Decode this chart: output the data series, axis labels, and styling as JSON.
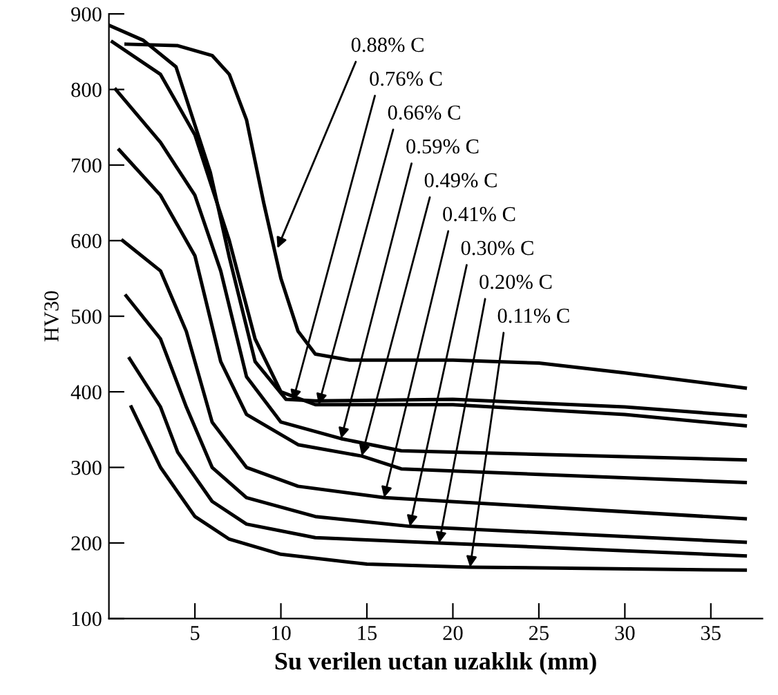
{
  "chart_data": {
    "type": "line",
    "xlabel": "Su verilen uctan uzaklık (mm)",
    "ylabel": "HV30",
    "xlim": [
      0,
      38
    ],
    "ylim": [
      100,
      900
    ],
    "xticks": [
      5,
      10,
      15,
      20,
      25,
      30,
      35
    ],
    "yticks": [
      100,
      200,
      300,
      400,
      500,
      600,
      700,
      800,
      900
    ],
    "grid": false,
    "legend": false,
    "marker": "none",
    "line_style": "solid",
    "series": [
      {
        "color": "#000000",
        "x": [
          1,
          4,
          6,
          7,
          8,
          9,
          10,
          11,
          12,
          14,
          20,
          25,
          30,
          37
        ],
        "values": [
          860,
          858,
          845,
          820,
          760,
          650,
          550,
          480,
          450,
          442,
          442,
          438,
          425,
          405
        ]
      },
      {
        "color": "#000000",
        "x": [
          0,
          2,
          3.9,
          5.9,
          7,
          8.5,
          10.3,
          12,
          20,
          30,
          37
        ],
        "values": [
          885,
          865,
          830,
          690,
          578,
          440,
          390,
          388,
          390,
          380,
          368
        ]
      },
      {
        "color": "#000000",
        "x": [
          0.2,
          3,
          5,
          7,
          8.5,
          10,
          12,
          20,
          30,
          37
        ],
        "values": [
          863,
          820,
          740,
          600,
          470,
          400,
          383,
          383,
          370,
          355
        ]
      },
      {
        "color": "#000000",
        "x": [
          0.4,
          3,
          5,
          6.5,
          8,
          10,
          13.5,
          17,
          37
        ],
        "values": [
          800,
          730,
          660,
          560,
          420,
          360,
          338,
          322,
          310
        ]
      },
      {
        "color": "#000000",
        "x": [
          0.6,
          3,
          5,
          6.5,
          8,
          11,
          14.7,
          17,
          37
        ],
        "values": [
          720,
          660,
          580,
          440,
          370,
          330,
          315,
          298,
          280
        ]
      },
      {
        "color": "#000000",
        "x": [
          0.8,
          3,
          4.5,
          6,
          8,
          11,
          16,
          37
        ],
        "values": [
          600,
          560,
          480,
          360,
          300,
          275,
          260,
          232
        ]
      },
      {
        "color": "#000000",
        "x": [
          1,
          3,
          4.5,
          6,
          8,
          12,
          17.5,
          37
        ],
        "values": [
          527,
          470,
          380,
          300,
          260,
          235,
          222,
          201
        ]
      },
      {
        "color": "#000000",
        "x": [
          1.2,
          3,
          4,
          6,
          8,
          12,
          19.2,
          37
        ],
        "values": [
          444,
          380,
          320,
          255,
          225,
          207,
          200,
          183
        ]
      },
      {
        "color": "#000000",
        "x": [
          1.3,
          3,
          5,
          7,
          10,
          15,
          21,
          37
        ],
        "values": [
          380,
          300,
          235,
          205,
          185,
          172,
          168,
          164
        ]
      }
    ],
    "annotations": [
      {
        "text": "0.88% C",
        "x": 9.8,
        "y": 590
      },
      {
        "text": "0.76% C",
        "x": 10.7,
        "y": 388
      },
      {
        "text": "0.66% C",
        "x": 12.2,
        "y": 383
      },
      {
        "text": "0.59% C",
        "x": 13.5,
        "y": 338
      },
      {
        "text": "0.49% C",
        "x": 14.7,
        "y": 315
      },
      {
        "text": "0.41% C",
        "x": 16,
        "y": 260
      },
      {
        "text": "0.30% C",
        "x": 17.5,
        "y": 222
      },
      {
        "text": "0.20% C",
        "x": 19.2,
        "y": 200
      },
      {
        "text": "0.11% C",
        "x": 21,
        "y": 168
      }
    ]
  }
}
